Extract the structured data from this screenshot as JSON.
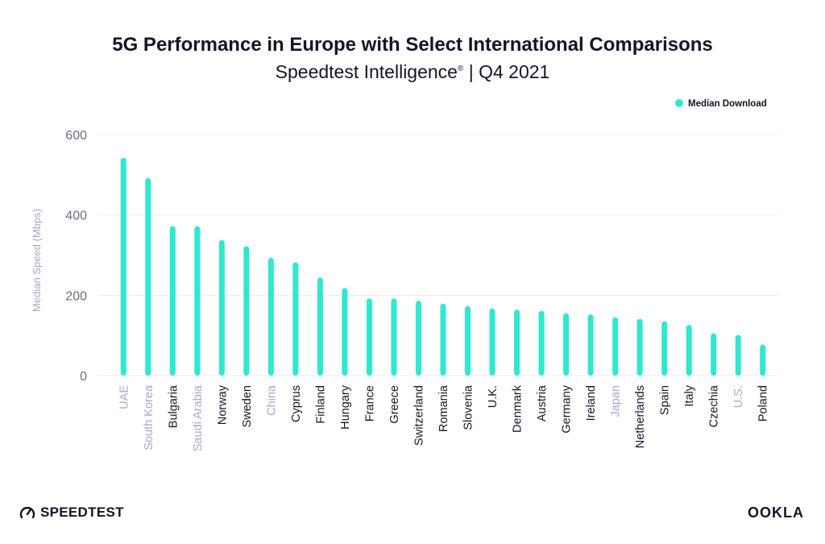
{
  "header": {
    "title": "5G Performance in Europe with Select International Comparisons",
    "subtitle_main": "Speedtest Intelligence",
    "subtitle_mark": "®",
    "subtitle_rest": " | Q4 2021"
  },
  "footer": {
    "brand_left": "SPEEDTEST",
    "brand_right": "OOKLA"
  },
  "colors": {
    "bar": "#2ee8cf",
    "label_highlight": "#a9a6c8",
    "label_default": "#141526",
    "grid": "#ececf1",
    "axis_text": "#6e6c86"
  },
  "chart_data": {
    "type": "bar",
    "title": "5G Performance in Europe with Select International Comparisons",
    "subtitle": "Speedtest Intelligence® | Q4 2021",
    "ylabel": "Median Speed (Mbps)",
    "xlabel": "",
    "ylim": [
      0,
      600
    ],
    "yticks": [
      0,
      200,
      400,
      600
    ],
    "grid": true,
    "legend_position": "top-right",
    "categories": [
      "UAE",
      "South Korea",
      "Bulgaria",
      "Saudi Arabia",
      "Norway",
      "Sweden",
      "China",
      "Cyprus",
      "Finland",
      "Hungary",
      "France",
      "Greece",
      "Switzerland",
      "Romania",
      "Slovenia",
      "U.K.",
      "Denmark",
      "Austria",
      "Germany",
      "Ireland",
      "Japan",
      "Netherlands",
      "Spain",
      "Italy",
      "Czechia",
      "U.S.",
      "Poland"
    ],
    "highlighted_categories": [
      "UAE",
      "South Korea",
      "Saudi Arabia",
      "China",
      "Japan",
      "U.S."
    ],
    "series": [
      {
        "name": "Median Download",
        "values": [
          542,
          492,
          372,
          372,
          337,
          322,
          293,
          282,
          244,
          218,
          192,
          192,
          186,
          179,
          173,
          167,
          164,
          161,
          155,
          152,
          145,
          141,
          135,
          126,
          105,
          101,
          77
        ]
      }
    ]
  }
}
